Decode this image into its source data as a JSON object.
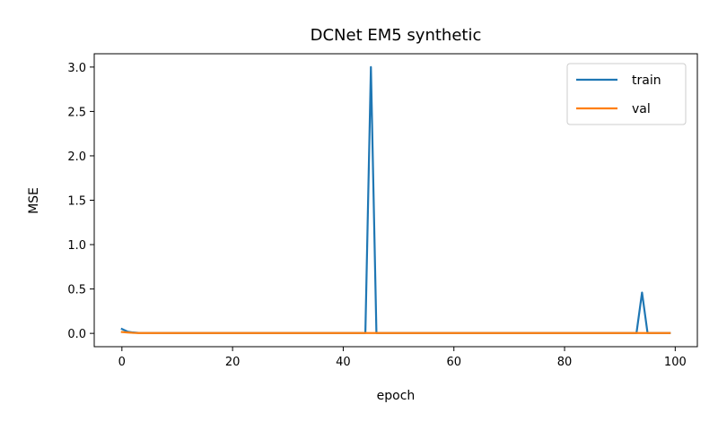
{
  "chart_data": {
    "type": "line",
    "title": "DCNet EM5 synthetic",
    "xlabel": "epoch",
    "ylabel": "MSE",
    "xlim": [
      -5,
      104
    ],
    "ylim": [
      -0.15,
      3.15
    ],
    "xticks": [
      0,
      20,
      40,
      60,
      80,
      100
    ],
    "xtick_labels": [
      "0",
      "20",
      "40",
      "60",
      "80",
      "100"
    ],
    "yticks": [
      0.0,
      0.5,
      1.0,
      1.5,
      2.0,
      2.5,
      3.0
    ],
    "ytick_labels": [
      "0.0",
      "0.5",
      "1.0",
      "1.5",
      "2.0",
      "2.5",
      "3.0"
    ],
    "grid": false,
    "legend_position": "top-right",
    "series": [
      {
        "name": "train",
        "color": "#1f77b4",
        "x": [
          0,
          1,
          2,
          3,
          10,
          20,
          30,
          40,
          44,
          45,
          46,
          50,
          60,
          70,
          80,
          90,
          93,
          94,
          95,
          99
        ],
        "y": [
          0.05,
          0.02,
          0.01,
          0.005,
          0.004,
          0.004,
          0.004,
          0.004,
          0.004,
          3.0,
          0.004,
          0.004,
          0.004,
          0.004,
          0.004,
          0.004,
          0.004,
          0.46,
          0.004,
          0.004
        ]
      },
      {
        "name": "val",
        "color": "#ff7f0e",
        "x": [
          0,
          1,
          2,
          3,
          10,
          20,
          30,
          40,
          50,
          60,
          70,
          80,
          90,
          99
        ],
        "y": [
          0.015,
          0.01,
          0.006,
          0.004,
          0.004,
          0.004,
          0.004,
          0.004,
          0.004,
          0.004,
          0.004,
          0.004,
          0.004,
          0.004
        ]
      }
    ]
  }
}
